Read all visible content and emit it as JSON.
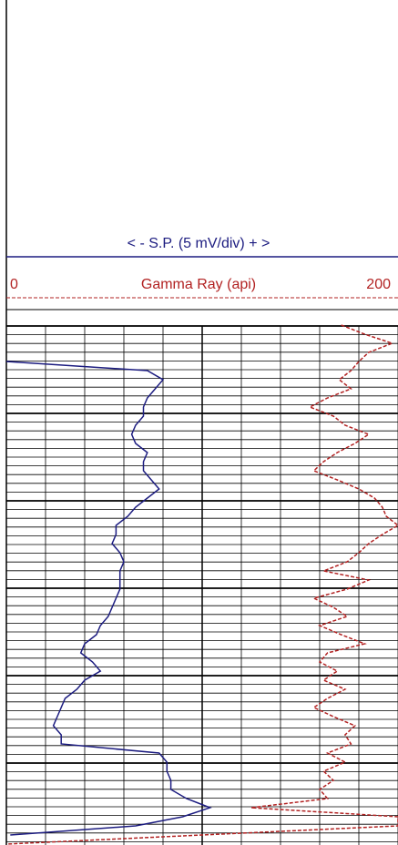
{
  "sp_track": {
    "type": "line",
    "title": "< - S.P. (5 mV/div) + >",
    "color": "#1c1c80",
    "xlim": [
      0,
      10
    ],
    "values": [
      0,
      3.6,
      4.0,
      3.8,
      3.6,
      3.5,
      3.5,
      3.3,
      3.2,
      3.3,
      3.6,
      3.5,
      3.5,
      3.7,
      3.9,
      3.6,
      3.3,
      3.1,
      2.8,
      2.8,
      2.7,
      2.9,
      3.0,
      2.9,
      2.9,
      2.9,
      2.8,
      2.7,
      2.6,
      2.4,
      2.3,
      2.0,
      1.9,
      2.2,
      2.4,
      2.0,
      1.8,
      1.5,
      1.4,
      1.3,
      1.2,
      1.4,
      1.4,
      3.9,
      4.1,
      4.1,
      4.2,
      4.2,
      4.6,
      5.2,
      4.5,
      3.3,
      0.1
    ]
  },
  "gr_track": {
    "type": "line",
    "title": "Gamma Ray (api)",
    "color": "#b22222",
    "xlim": [
      0,
      200
    ],
    "xticks": [
      0,
      200
    ],
    "values": [
      171,
      183,
      197,
      185,
      180,
      176,
      170,
      176,
      164,
      155,
      167,
      173,
      185,
      178,
      169,
      162,
      157,
      169,
      180,
      188,
      192,
      194,
      200,
      192,
      185,
      180,
      174,
      162,
      185,
      174,
      157,
      167,
      174,
      160,
      171,
      183,
      164,
      160,
      169,
      162,
      173,
      164,
      157,
      167,
      178,
      173,
      176,
      164,
      173,
      162,
      167,
      160,
      164,
      125,
      200,
      200,
      100,
      0
    ]
  }
}
